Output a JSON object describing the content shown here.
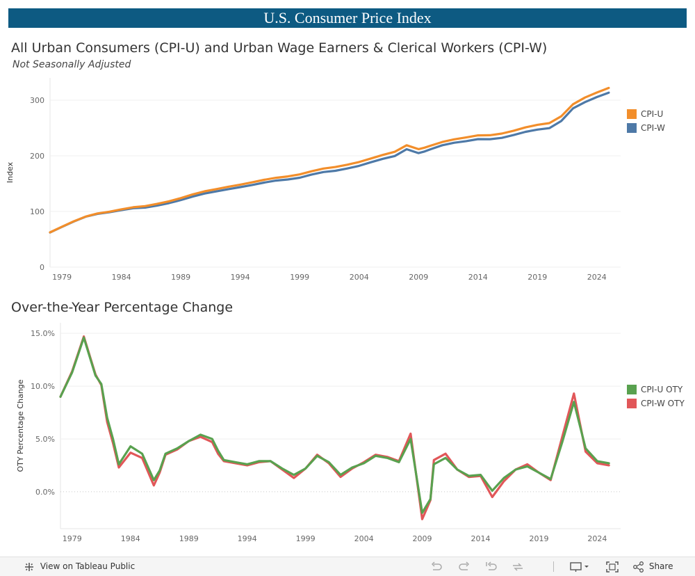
{
  "banner": {
    "title": "U.S. Consumer Price Index"
  },
  "chart1": {
    "title": "All Urban Consumers (CPI-U) and Urban Wage Earners & Clerical Workers (CPI-W)",
    "subtitle": "Not Seasonally Adjusted"
  },
  "chart2": {
    "title": "Over-the-Year Percentage Change"
  },
  "toolbar": {
    "view_label": "View on Tableau Public",
    "share_label": "Share"
  },
  "chart_data": [
    {
      "type": "line",
      "title": "All Urban Consumers (CPI-U) and Urban Wage Earners & Clerical Workers (CPI-W)",
      "subtitle": "Not Seasonally Adjusted",
      "xlabel": "",
      "ylabel": "Index",
      "xlim": [
        1978,
        2026
      ],
      "ylim": [
        0,
        340
      ],
      "x_ticks": [
        1979,
        1984,
        1989,
        1994,
        1999,
        2004,
        2009,
        2014,
        2019,
        2024
      ],
      "y_ticks": [
        0,
        100,
        200,
        300
      ],
      "legend_position": "right",
      "series": [
        {
          "name": "CPI-U",
          "color": "#f28e2b",
          "points": [
            [
              1978,
              62.5
            ],
            [
              1979,
              72.6
            ],
            [
              1980,
              82.4
            ],
            [
              1981,
              90.9
            ],
            [
              1982,
              96.5
            ],
            [
              1983,
              99.6
            ],
            [
              1984,
              103.9
            ],
            [
              1985,
              107.6
            ],
            [
              1986,
              109.6
            ],
            [
              1987,
              113.6
            ],
            [
              1988,
              118.3
            ],
            [
              1989,
              124.0
            ],
            [
              1990,
              130.7
            ],
            [
              1991,
              136.2
            ],
            [
              1992,
              140.3
            ],
            [
              1993,
              144.5
            ],
            [
              1994,
              148.2
            ],
            [
              1995,
              152.4
            ],
            [
              1996,
              156.9
            ],
            [
              1997,
              160.5
            ],
            [
              1998,
              163.0
            ],
            [
              1999,
              166.6
            ],
            [
              2000,
              172.2
            ],
            [
              2001,
              177.1
            ],
            [
              2002,
              179.9
            ],
            [
              2003,
              184.0
            ],
            [
              2004,
              188.9
            ],
            [
              2005,
              195.3
            ],
            [
              2006,
              201.6
            ],
            [
              2007,
              207.3
            ],
            [
              2008,
              219.0
            ],
            [
              2009,
              212.0
            ],
            [
              2009.5,
              214.6
            ],
            [
              2010,
              218.1
            ],
            [
              2011,
              224.9
            ],
            [
              2012,
              229.6
            ],
            [
              2013,
              233.0
            ],
            [
              2014,
              236.7
            ],
            [
              2015,
              237.0
            ],
            [
              2016,
              240.0
            ],
            [
              2017,
              245.1
            ],
            [
              2018,
              251.1
            ],
            [
              2019,
              255.7
            ],
            [
              2020,
              258.8
            ],
            [
              2021,
              271.0
            ],
            [
              2022,
              292.7
            ],
            [
              2023,
              304.7
            ],
            [
              2024,
              313.7
            ],
            [
              2025,
              322.0
            ]
          ]
        },
        {
          "name": "CPI-W",
          "color": "#4e79a7",
          "points": [
            [
              1978,
              62.3
            ],
            [
              1979,
              72.3
            ],
            [
              1980,
              82.0
            ],
            [
              1981,
              90.6
            ],
            [
              1982,
              95.8
            ],
            [
              1983,
              98.8
            ],
            [
              1984,
              102.4
            ],
            [
              1985,
              105.9
            ],
            [
              1986,
              107.0
            ],
            [
              1987,
              110.6
            ],
            [
              1988,
              115.0
            ],
            [
              1989,
              120.5
            ],
            [
              1990,
              126.8
            ],
            [
              1991,
              132.3
            ],
            [
              1992,
              136.1
            ],
            [
              1993,
              140.1
            ],
            [
              1994,
              143.7
            ],
            [
              1995,
              147.6
            ],
            [
              1996,
              151.9
            ],
            [
              1997,
              155.5
            ],
            [
              1998,
              157.5
            ],
            [
              1999,
              160.6
            ],
            [
              2000,
              166.4
            ],
            [
              2001,
              170.9
            ],
            [
              2002,
              173.1
            ],
            [
              2003,
              177.2
            ],
            [
              2004,
              182.0
            ],
            [
              2005,
              188.5
            ],
            [
              2006,
              194.6
            ],
            [
              2007,
              199.6
            ],
            [
              2008,
              211.9
            ],
            [
              2009,
              204.9
            ],
            [
              2009.5,
              207.7
            ],
            [
              2010,
              211.7
            ],
            [
              2011,
              219.0
            ],
            [
              2012,
              223.5
            ],
            [
              2013,
              226.4
            ],
            [
              2014,
              230.0
            ],
            [
              2015,
              229.9
            ],
            [
              2016,
              232.3
            ],
            [
              2017,
              237.4
            ],
            [
              2018,
              243.1
            ],
            [
              2019,
              247.1
            ],
            [
              2020,
              249.8
            ],
            [
              2021,
              262.5
            ],
            [
              2022,
              285.4
            ],
            [
              2023,
              296.5
            ],
            [
              2024,
              305.6
            ],
            [
              2025,
              313.5
            ]
          ]
        }
      ]
    },
    {
      "type": "line",
      "title": "Over-the-Year Percentage Change",
      "xlabel": "",
      "ylabel": "OTY Percentage Change",
      "xlim": [
        1978,
        2026
      ],
      "ylim": [
        -3.5,
        16
      ],
      "x_ticks": [
        1979,
        1984,
        1989,
        1994,
        1999,
        2004,
        2009,
        2014,
        2019,
        2024
      ],
      "y_ticks": [
        0,
        5,
        10,
        15
      ],
      "y_tick_labels": [
        "0.0%",
        "5.0%",
        "10.0%",
        "15.0%"
      ],
      "zero_line": true,
      "legend_position": "right",
      "series": [
        {
          "name": "CPI-U OTY",
          "color": "#59a14f",
          "points": [
            [
              1978,
              9.0
            ],
            [
              1979,
              11.3
            ],
            [
              1980,
              14.6
            ],
            [
              1980.5,
              12.8
            ],
            [
              1981,
              11.0
            ],
            [
              1981.5,
              10.2
            ],
            [
              1982,
              7.0
            ],
            [
              1982.5,
              5.0
            ],
            [
              1983,
              2.6
            ],
            [
              1984,
              4.3
            ],
            [
              1985,
              3.6
            ],
            [
              1986,
              1.1
            ],
            [
              1986.5,
              2.0
            ],
            [
              1987,
              3.6
            ],
            [
              1988,
              4.1
            ],
            [
              1989,
              4.8
            ],
            [
              1990,
              5.4
            ],
            [
              1991,
              5.0
            ],
            [
              1991.5,
              3.9
            ],
            [
              1992,
              3.0
            ],
            [
              1993,
              2.8
            ],
            [
              1994,
              2.6
            ],
            [
              1995,
              2.9
            ],
            [
              1996,
              2.9
            ],
            [
              1997,
              2.2
            ],
            [
              1998,
              1.6
            ],
            [
              1999,
              2.2
            ],
            [
              2000,
              3.4
            ],
            [
              2001,
              2.8
            ],
            [
              2002,
              1.6
            ],
            [
              2003,
              2.3
            ],
            [
              2004,
              2.7
            ],
            [
              2005,
              3.4
            ],
            [
              2006,
              3.2
            ],
            [
              2007,
              2.8
            ],
            [
              2008,
              5.0
            ],
            [
              2009,
              -2.0
            ],
            [
              2009.7,
              -0.7
            ],
            [
              2010,
              2.6
            ],
            [
              2011,
              3.2
            ],
            [
              2012,
              2.1
            ],
            [
              2013,
              1.5
            ],
            [
              2014,
              1.6
            ],
            [
              2015,
              0.1
            ],
            [
              2016,
              1.3
            ],
            [
              2017,
              2.1
            ],
            [
              2018,
              2.4
            ],
            [
              2019,
              1.8
            ],
            [
              2020,
              1.2
            ],
            [
              2021,
              4.7
            ],
            [
              2022,
              8.5
            ],
            [
              2023,
              4.1
            ],
            [
              2024,
              2.9
            ],
            [
              2025,
              2.7
            ]
          ]
        },
        {
          "name": "CPI-W OTY",
          "color": "#e15759",
          "points": [
            [
              1978,
              9.0
            ],
            [
              1979,
              11.4
            ],
            [
              1980,
              14.7
            ],
            [
              1980.5,
              12.9
            ],
            [
              1981,
              11.1
            ],
            [
              1981.5,
              10.1
            ],
            [
              1982,
              6.6
            ],
            [
              1982.5,
              4.6
            ],
            [
              1983,
              2.3
            ],
            [
              1984,
              3.7
            ],
            [
              1985,
              3.2
            ],
            [
              1986,
              0.6
            ],
            [
              1986.5,
              1.8
            ],
            [
              1987,
              3.5
            ],
            [
              1988,
              4.0
            ],
            [
              1989,
              4.8
            ],
            [
              1990,
              5.2
            ],
            [
              1991,
              4.7
            ],
            [
              1991.5,
              3.6
            ],
            [
              1992,
              2.9
            ],
            [
              1993,
              2.7
            ],
            [
              1994,
              2.5
            ],
            [
              1995,
              2.8
            ],
            [
              1996,
              2.9
            ],
            [
              1997,
              2.1
            ],
            [
              1998,
              1.3
            ],
            [
              1999,
              2.2
            ],
            [
              2000,
              3.5
            ],
            [
              2001,
              2.7
            ],
            [
              2002,
              1.4
            ],
            [
              2003,
              2.2
            ],
            [
              2004,
              2.8
            ],
            [
              2005,
              3.5
            ],
            [
              2006,
              3.3
            ],
            [
              2007,
              2.9
            ],
            [
              2008,
              5.5
            ],
            [
              2009,
              -2.6
            ],
            [
              2009.7,
              -0.8
            ],
            [
              2010,
              3.0
            ],
            [
              2011,
              3.6
            ],
            [
              2012,
              2.1
            ],
            [
              2013,
              1.4
            ],
            [
              2014,
              1.5
            ],
            [
              2015,
              -0.5
            ],
            [
              2016,
              1.0
            ],
            [
              2017,
              2.1
            ],
            [
              2018,
              2.6
            ],
            [
              2019,
              1.8
            ],
            [
              2020,
              1.1
            ],
            [
              2021,
              5.2
            ],
            [
              2022,
              9.3
            ],
            [
              2023,
              3.8
            ],
            [
              2024,
              2.7
            ],
            [
              2025,
              2.5
            ]
          ]
        }
      ]
    }
  ]
}
